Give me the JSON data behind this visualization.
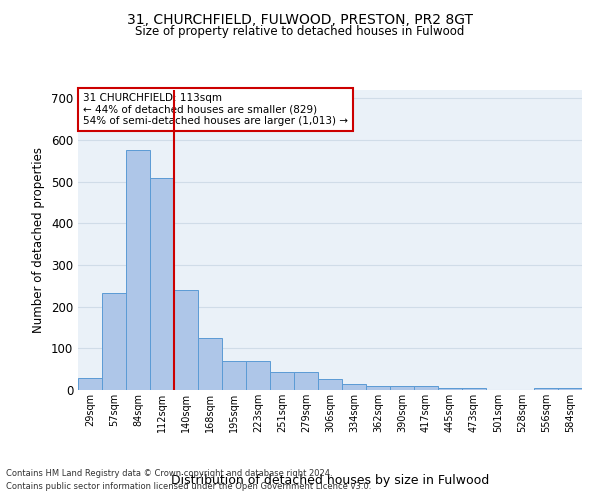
{
  "title1": "31, CHURCHFIELD, FULWOOD, PRESTON, PR2 8GT",
  "title2": "Size of property relative to detached houses in Fulwood",
  "xlabel": "Distribution of detached houses by size in Fulwood",
  "ylabel": "Number of detached properties",
  "bar_labels": [
    "29sqm",
    "57sqm",
    "84sqm",
    "112sqm",
    "140sqm",
    "168sqm",
    "195sqm",
    "223sqm",
    "251sqm",
    "279sqm",
    "306sqm",
    "334sqm",
    "362sqm",
    "390sqm",
    "417sqm",
    "445sqm",
    "473sqm",
    "501sqm",
    "528sqm",
    "556sqm",
    "584sqm"
  ],
  "bar_values": [
    29,
    233,
    575,
    510,
    241,
    125,
    70,
    70,
    43,
    43,
    26,
    15,
    10,
    10,
    10,
    5,
    5,
    0,
    0,
    5,
    5
  ],
  "bar_color": "#aec6e8",
  "bar_edge_color": "#5b9bd5",
  "highlight_bar_index": 3,
  "highlight_line_color": "#cc0000",
  "annotation_text": "31 CHURCHFIELD: 113sqm\n← 44% of detached houses are smaller (829)\n54% of semi-detached houses are larger (1,013) →",
  "annotation_box_color": "#ffffff",
  "annotation_box_edge_color": "#cc0000",
  "ylim": [
    0,
    720
  ],
  "yticks": [
    0,
    100,
    200,
    300,
    400,
    500,
    600,
    700
  ],
  "grid_color": "#d0dce8",
  "background_color": "#eaf1f8",
  "footnote1": "Contains HM Land Registry data © Crown copyright and database right 2024.",
  "footnote2": "Contains public sector information licensed under the Open Government Licence v3.0."
}
